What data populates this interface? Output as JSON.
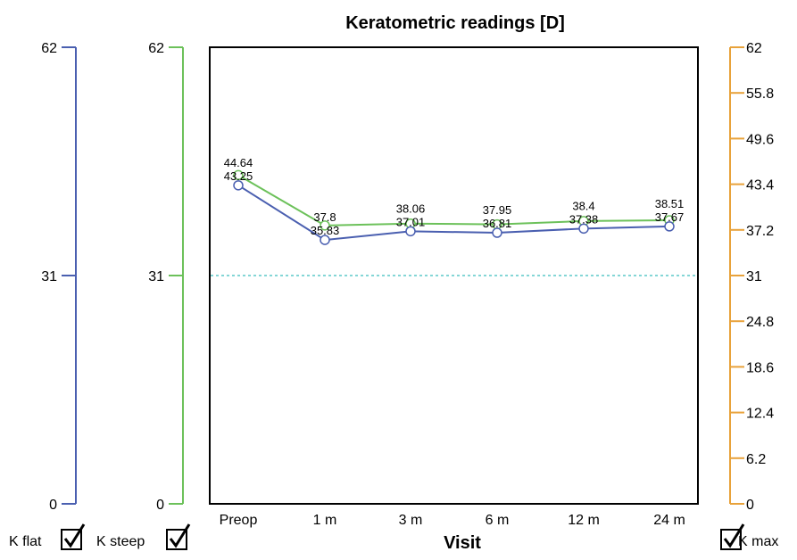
{
  "colors": {
    "k_flat": "#4a5fb0",
    "k_steep": "#6cc15a",
    "k_max": "#e8a23a",
    "reference_line": "#5cc8c8",
    "checkbox_mark": "#000000"
  },
  "chart_data": {
    "type": "line",
    "title": "Keratometric readings [D]",
    "xlabel": "Visit",
    "categories": [
      "Preop",
      "1 m",
      "3 m",
      "6 m",
      "12 m",
      "24 m"
    ],
    "ylim": [
      0,
      62
    ],
    "axes": {
      "k_flat": {
        "ticks": [
          "0",
          "31",
          "62"
        ]
      },
      "k_steep": {
        "ticks": [
          "0",
          "31",
          "62"
        ]
      },
      "k_max": {
        "ticks": [
          "0",
          "6.2",
          "12.4",
          "18.6",
          "24.8",
          "31",
          "37.2",
          "43.4",
          "49.6",
          "55.8",
          "62"
        ]
      }
    },
    "reference_line_value": 31,
    "series": [
      {
        "name": "K flat",
        "key": "k_flat",
        "values": [
          43.25,
          35.83,
          37.01,
          36.81,
          37.38,
          37.67
        ]
      },
      {
        "name": "K steep",
        "key": "k_steep",
        "values": [
          44.64,
          37.8,
          38.06,
          37.95,
          38.4,
          38.51
        ]
      }
    ],
    "legend": [
      {
        "label": "K flat",
        "checked": true
      },
      {
        "label": "K steep",
        "checked": true
      },
      {
        "label": "K max",
        "checked": true
      }
    ]
  }
}
